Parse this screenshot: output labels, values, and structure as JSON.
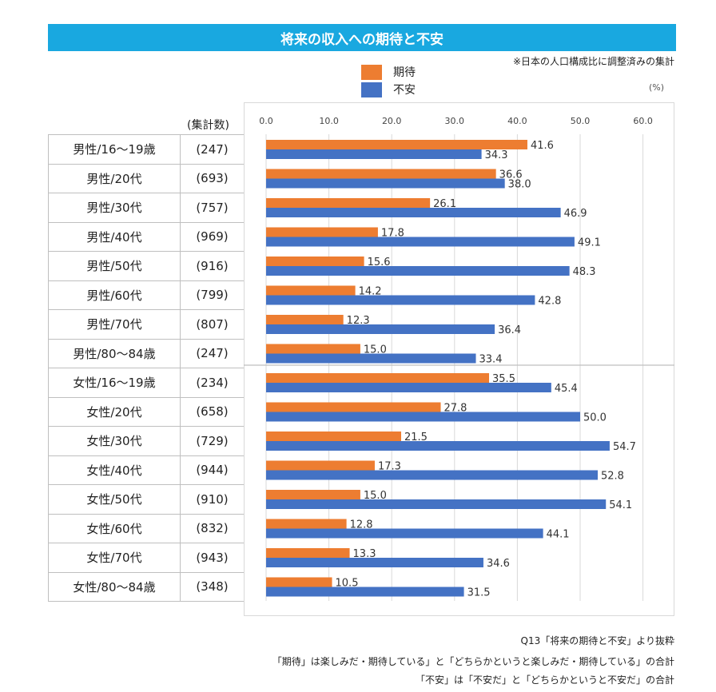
{
  "title": "将来の収入への期待と不安",
  "note": "※日本の人口構成比に調整済みの集計",
  "unit": "(%)",
  "count_header": "(集計数)",
  "legend": [
    {
      "label": "期待",
      "color": "#ed7d31"
    },
    {
      "label": "不安",
      "color": "#4472c4"
    }
  ],
  "footnotes": [
    "Q13「将来の期待と不安」より抜粋",
    "「期待」は楽しみだ・期待している」と「どちらかというと楽しみだ・期待している」の合計",
    "「不安」は「不安だ」と「どちらかというと不安だ」の合計"
  ],
  "chart_data": {
    "type": "bar",
    "orientation": "horizontal",
    "title": "将来の収入への期待と不安",
    "xlabel": "(%)",
    "xlim": [
      0,
      60
    ],
    "ticks": [
      "0.0",
      "10.0",
      "20.0",
      "30.0",
      "40.0",
      "50.0",
      "60.0"
    ],
    "categories": [
      {
        "label": "男性/16～19歳",
        "count": "(247)"
      },
      {
        "label": "男性/20代",
        "count": "(693)"
      },
      {
        "label": "男性/30代",
        "count": "(757)"
      },
      {
        "label": "男性/40代",
        "count": "(969)"
      },
      {
        "label": "男性/50代",
        "count": "(916)"
      },
      {
        "label": "男性/60代",
        "count": "(799)"
      },
      {
        "label": "男性/70代",
        "count": "(807)"
      },
      {
        "label": "男性/80～84歳",
        "count": "(247)"
      },
      {
        "label": "女性/16～19歳",
        "count": "(234)"
      },
      {
        "label": "女性/20代",
        "count": "(658)"
      },
      {
        "label": "女性/30代",
        "count": "(729)"
      },
      {
        "label": "女性/40代",
        "count": "(944)"
      },
      {
        "label": "女性/50代",
        "count": "(910)"
      },
      {
        "label": "女性/60代",
        "count": "(832)"
      },
      {
        "label": "女性/70代",
        "count": "(943)"
      },
      {
        "label": "女性/80～84歳",
        "count": "(348)"
      }
    ],
    "series": [
      {
        "name": "期待",
        "color": "#ed7d31",
        "values": [
          41.6,
          36.6,
          26.1,
          17.8,
          15.6,
          14.2,
          12.3,
          15.0,
          35.5,
          27.8,
          21.5,
          17.3,
          15.0,
          12.8,
          13.3,
          10.5
        ],
        "labels": [
          "41.6",
          "36.6",
          "26.1",
          "17.8",
          "15.6",
          "14.2",
          "12.3",
          "15.0",
          "35.5",
          "27.8",
          "21.5",
          "17.3",
          "15.0",
          "12.8",
          "13.3",
          "10.5"
        ]
      },
      {
        "name": "不安",
        "color": "#4472c4",
        "values": [
          34.3,
          38.0,
          46.9,
          49.1,
          48.3,
          42.8,
          36.4,
          33.4,
          45.4,
          50.0,
          54.7,
          52.8,
          54.1,
          44.1,
          34.6,
          31.5
        ],
        "labels": [
          "34.3",
          "38.0",
          "46.9",
          "49.1",
          "48.3",
          "42.8",
          "36.4",
          "33.4",
          "45.4",
          "50.0",
          "54.7",
          "52.8",
          "54.1",
          "44.1",
          "34.6",
          "31.5"
        ]
      }
    ],
    "grid": true
  }
}
